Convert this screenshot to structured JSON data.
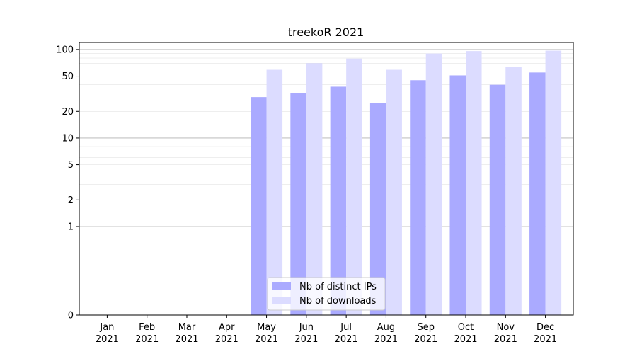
{
  "chart_data": {
    "type": "bar",
    "title": "treekoR 2021",
    "xlabel": "",
    "ylabel": "",
    "y_scale": "symlog",
    "y_ticks": [
      0,
      1,
      2,
      5,
      10,
      20,
      50,
      100
    ],
    "ylim": [
      0,
      120
    ],
    "grid": "horizontal",
    "legend_position": "lower-center",
    "categories": [
      {
        "month": "Jan",
        "year": "2021"
      },
      {
        "month": "Feb",
        "year": "2021"
      },
      {
        "month": "Mar",
        "year": "2021"
      },
      {
        "month": "Apr",
        "year": "2021"
      },
      {
        "month": "May",
        "year": "2021"
      },
      {
        "month": "Jun",
        "year": "2021"
      },
      {
        "month": "Jul",
        "year": "2021"
      },
      {
        "month": "Aug",
        "year": "2021"
      },
      {
        "month": "Sep",
        "year": "2021"
      },
      {
        "month": "Oct",
        "year": "2021"
      },
      {
        "month": "Nov",
        "year": "2021"
      },
      {
        "month": "Dec",
        "year": "2021"
      }
    ],
    "series": [
      {
        "name": "Nb of distinct IPs",
        "color": "#aaaaff",
        "values": [
          0,
          0,
          0,
          0,
          29,
          32,
          38,
          25,
          45,
          51,
          40,
          55
        ]
      },
      {
        "name": "Nb of downloads",
        "color": "#dcdcff",
        "values": [
          0,
          0,
          0,
          0,
          59,
          70,
          79,
          59,
          90,
          96,
          63,
          97
        ]
      }
    ]
  }
}
